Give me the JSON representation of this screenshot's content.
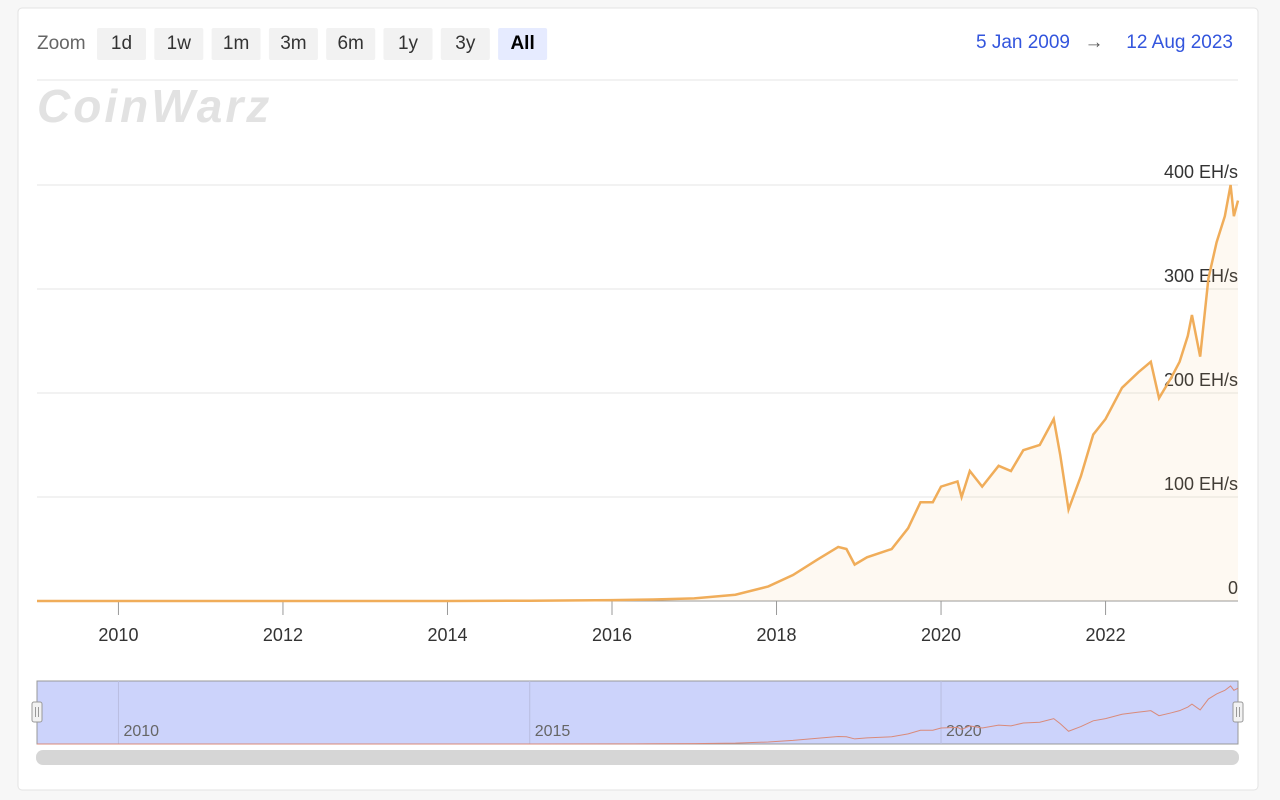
{
  "zoom_label": "Zoom",
  "zoom_buttons": [
    "1d",
    "1w",
    "1m",
    "3m",
    "6m",
    "1y",
    "3y",
    "All"
  ],
  "date_range": {
    "from": "5 Jan 2009",
    "arrow": "→",
    "to": "12 Aug 2023"
  },
  "watermark": "CoinWarz",
  "chart_data": {
    "type": "area",
    "color": "#f0ad5a",
    "x": [
      2009.01,
      2010,
      2011,
      2012,
      2013,
      2014,
      2015,
      2016,
      2016.5,
      2017,
      2017.5,
      2017.9,
      2018.2,
      2018.5,
      2018.75,
      2018.85,
      2018.95,
      2019.1,
      2019.4,
      2019.6,
      2019.75,
      2019.9,
      2020.0,
      2020.2,
      2020.25,
      2020.35,
      2020.5,
      2020.7,
      2020.85,
      2021.0,
      2021.2,
      2021.37,
      2021.45,
      2021.55,
      2021.7,
      2021.85,
      2022.0,
      2022.2,
      2022.4,
      2022.55,
      2022.65,
      2022.8,
      2022.9,
      2023.0,
      2023.05,
      2023.15,
      2023.25,
      2023.35,
      2023.45,
      2023.52,
      2023.56,
      2023.61
    ],
    "values": [
      0,
      0,
      0,
      0,
      0,
      0,
      0.3,
      0.8,
      1.5,
      2.5,
      6,
      14,
      25,
      40,
      52,
      50,
      35,
      42,
      50,
      70,
      95,
      95,
      110,
      115,
      100,
      125,
      110,
      130,
      125,
      145,
      150,
      175,
      140,
      88,
      120,
      160,
      175,
      205,
      220,
      230,
      195,
      215,
      230,
      255,
      275,
      235,
      310,
      345,
      370,
      400,
      370,
      385
    ],
    "xlim": [
      2009.01,
      2023.61
    ],
    "xticks": [
      2010,
      2012,
      2014,
      2016,
      2018,
      2020,
      2022
    ],
    "ylim": [
      0,
      400
    ],
    "yticks": [
      0,
      {
        "value": 100,
        "label": "100 EH/s"
      },
      {
        "value": 200,
        "label": "200 EH/s"
      },
      {
        "value": 300,
        "label": "300 EH/s"
      },
      {
        "value": 400,
        "label": "400 EH/s"
      }
    ],
    "grid": true,
    "navigator": {
      "xticks": [
        2010,
        2015,
        2020
      ]
    }
  }
}
